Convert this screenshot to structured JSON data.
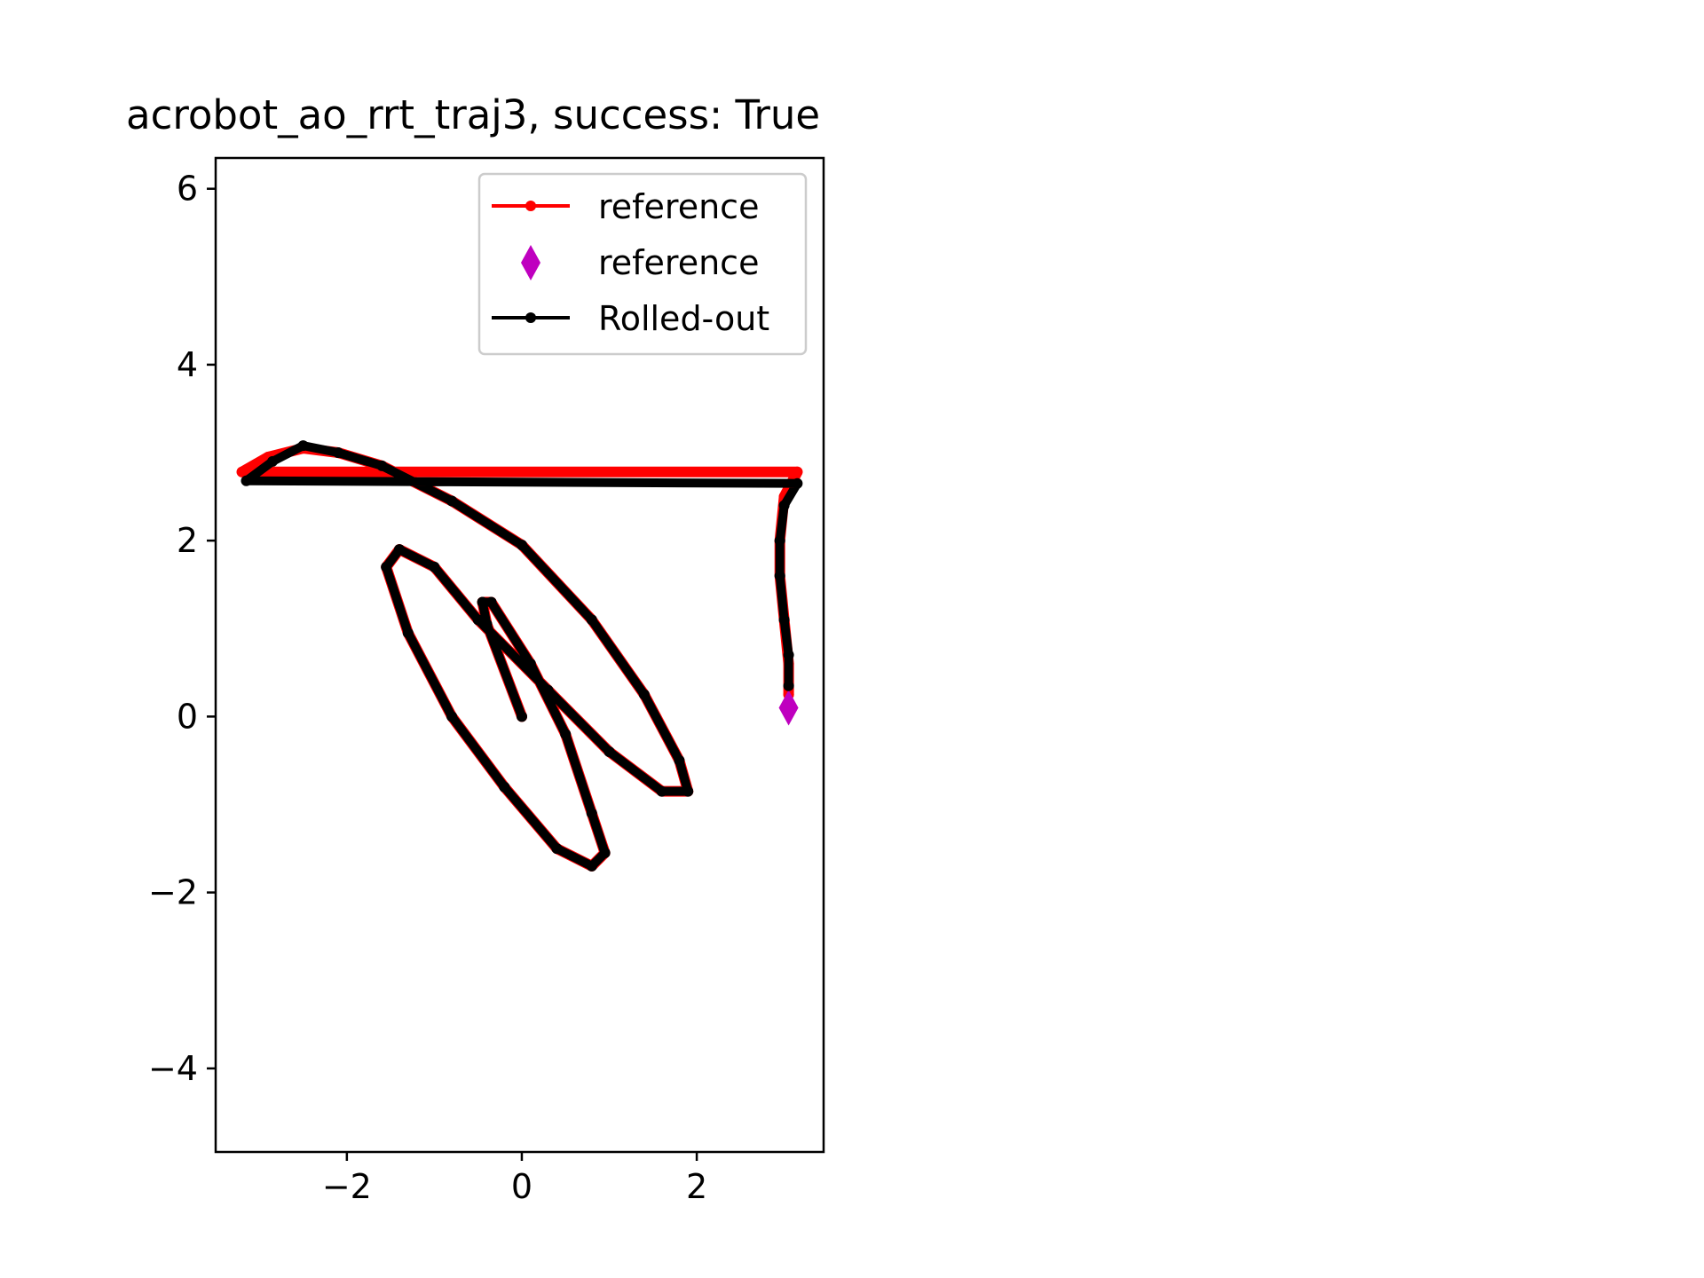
{
  "chart_data": {
    "type": "line",
    "title": "acrobot_ao_rrt_traj3, success: True",
    "xlabel": "",
    "ylabel": "",
    "xlim": [
      -3.5,
      3.45
    ],
    "ylim": [
      -4.95,
      6.35
    ],
    "grid": false,
    "legend_position": "upper-right",
    "x_ticks": [
      {
        "value": -2,
        "label": "−2"
      },
      {
        "value": 0,
        "label": "0"
      },
      {
        "value": 2,
        "label": "2"
      }
    ],
    "y_ticks": [
      {
        "value": -4,
        "label": "−4"
      },
      {
        "value": -2,
        "label": "−2"
      },
      {
        "value": 0,
        "label": "0"
      },
      {
        "value": 2,
        "label": "2"
      },
      {
        "value": 4,
        "label": "4"
      },
      {
        "value": 6,
        "label": "6"
      }
    ],
    "series": [
      {
        "name": "reference",
        "kind": "line-marker",
        "color": "#ff0000",
        "points": [
          [
            0,
            0
          ],
          [
            -0.4,
            1.05
          ],
          [
            -0.45,
            1.3
          ],
          [
            -0.35,
            1.3
          ],
          [
            0.1,
            0.6
          ],
          [
            0.5,
            -0.2
          ],
          [
            0.8,
            -1.1
          ],
          [
            0.95,
            -1.55
          ],
          [
            0.8,
            -1.7
          ],
          [
            0.4,
            -1.5
          ],
          [
            -0.2,
            -0.8
          ],
          [
            -0.8,
            0
          ],
          [
            -1.3,
            0.95
          ],
          [
            -1.55,
            1.7
          ],
          [
            -1.4,
            1.9
          ],
          [
            -1.0,
            1.7
          ],
          [
            -0.5,
            1.1
          ],
          [
            0.3,
            0.3
          ],
          [
            1.0,
            -0.4
          ],
          [
            1.6,
            -0.85
          ],
          [
            1.9,
            -0.85
          ],
          [
            1.8,
            -0.5
          ],
          [
            1.4,
            0.25
          ],
          [
            0.8,
            1.1
          ],
          [
            0.0,
            1.95
          ],
          [
            -0.8,
            2.45
          ],
          [
            -1.6,
            2.85
          ],
          [
            -2.1,
            3.0
          ],
          [
            -2.5,
            3.05
          ],
          [
            -2.9,
            2.95
          ],
          [
            -3.2,
            2.78
          ],
          [
            3.15,
            2.78
          ],
          [
            3.0,
            2.5
          ],
          [
            2.95,
            2.0
          ],
          [
            2.95,
            1.6
          ],
          [
            3.0,
            1.1
          ],
          [
            3.05,
            0.6
          ],
          [
            3.05,
            0.25
          ]
        ]
      },
      {
        "name": "reference",
        "kind": "marker",
        "marker": "thin-diamond",
        "color": "#bf00bf",
        "points": [
          [
            3.05,
            0.1
          ]
        ]
      },
      {
        "name": "Rolled-out",
        "kind": "line-marker",
        "color": "#000000",
        "points": [
          [
            0,
            0
          ],
          [
            -0.4,
            1.05
          ],
          [
            -0.45,
            1.3
          ],
          [
            -0.35,
            1.3
          ],
          [
            0.1,
            0.6
          ],
          [
            0.5,
            -0.2
          ],
          [
            0.8,
            -1.1
          ],
          [
            0.95,
            -1.55
          ],
          [
            0.8,
            -1.7
          ],
          [
            0.4,
            -1.5
          ],
          [
            -0.2,
            -0.8
          ],
          [
            -0.8,
            0
          ],
          [
            -1.3,
            0.95
          ],
          [
            -1.55,
            1.7
          ],
          [
            -1.4,
            1.9
          ],
          [
            -1.0,
            1.7
          ],
          [
            -0.5,
            1.1
          ],
          [
            0.3,
            0.3
          ],
          [
            1.0,
            -0.4
          ],
          [
            1.6,
            -0.85
          ],
          [
            1.9,
            -0.85
          ],
          [
            1.8,
            -0.5
          ],
          [
            1.4,
            0.25
          ],
          [
            0.8,
            1.1
          ],
          [
            0.0,
            1.95
          ],
          [
            -0.8,
            2.45
          ],
          [
            -1.6,
            2.85
          ],
          [
            -2.1,
            3.0
          ],
          [
            -2.5,
            3.08
          ],
          [
            -2.85,
            2.9
          ],
          [
            -3.15,
            2.68
          ],
          [
            3.15,
            2.65
          ],
          [
            3.0,
            2.4
          ],
          [
            2.95,
            2.0
          ],
          [
            2.95,
            1.6
          ],
          [
            3.0,
            1.1
          ],
          [
            3.05,
            0.7
          ],
          [
            3.05,
            0.35
          ]
        ]
      }
    ]
  }
}
